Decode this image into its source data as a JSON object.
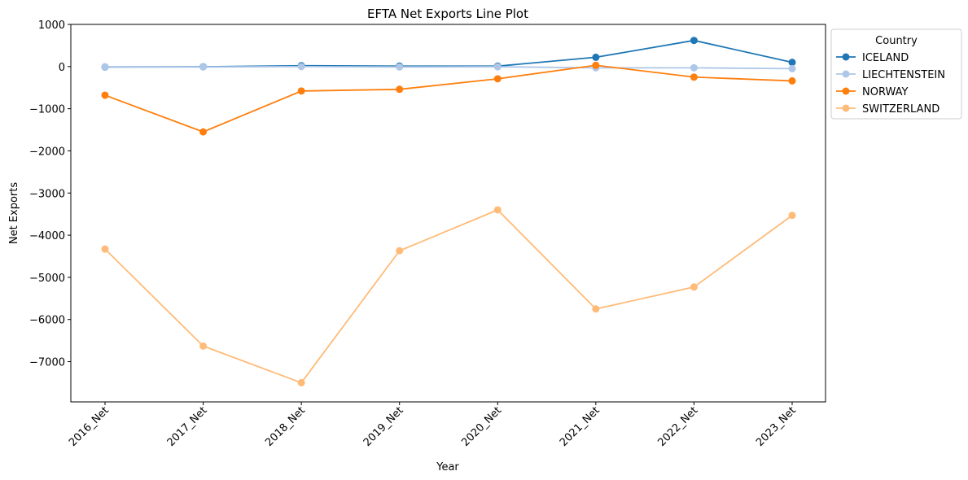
{
  "chart_data": {
    "type": "line",
    "title": "EFTA Net Exports Line Plot",
    "xlabel": "Year",
    "ylabel": "Net Exports",
    "categories": [
      "2016_Net",
      "2017_Net",
      "2018_Net",
      "2019_Net",
      "2020_Net",
      "2021_Net",
      "2022_Net",
      "2023_Net"
    ],
    "ylim": [
      -7955,
      1000
    ],
    "yticks": [
      1000,
      0,
      -1000,
      -2000,
      -3000,
      -4000,
      -5000,
      -6000,
      -7000
    ],
    "grid": false,
    "legend": {
      "title": "Country",
      "placement": "outside-top-right"
    },
    "series": [
      {
        "name": "ICELAND",
        "color": "#1f77b4",
        "values": [
          -10,
          -5,
          20,
          10,
          10,
          220,
          620,
          100
        ]
      },
      {
        "name": "LIECHTENSTEIN",
        "color": "#aec7e8",
        "values": [
          -5,
          -10,
          0,
          -10,
          -5,
          -30,
          -30,
          -50
        ]
      },
      {
        "name": "NORWAY",
        "color": "#ff7f0e",
        "values": [
          -680,
          -1550,
          -580,
          -540,
          -290,
          30,
          -250,
          -340
        ]
      },
      {
        "name": "SWITZERLAND",
        "color": "#ffbb78",
        "values": [
          -4330,
          -6630,
          -7500,
          -4370,
          -3400,
          -5750,
          -5230,
          -3530
        ]
      }
    ]
  }
}
